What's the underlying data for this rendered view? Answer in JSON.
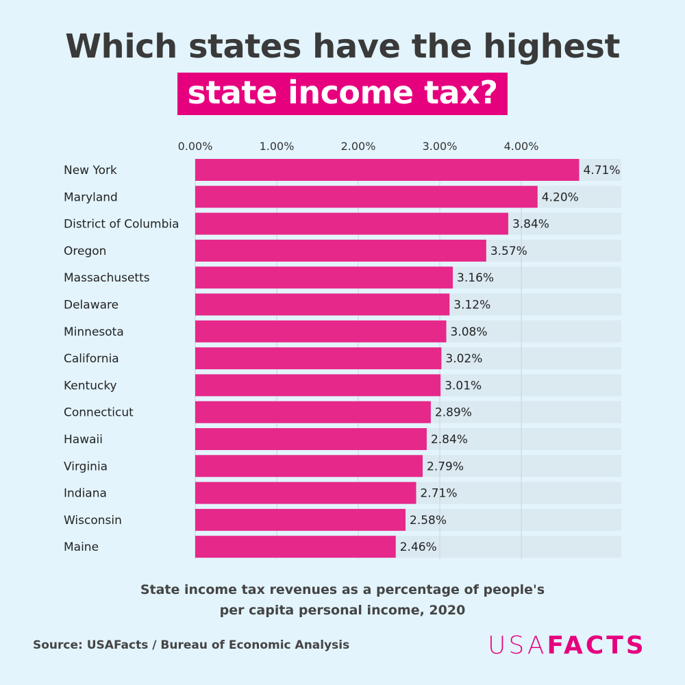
{
  "title_line1": "Which states have the highest",
  "title_line2": "state income tax?",
  "caption_line1": "State income tax revenues as a percentage of people's",
  "caption_line2": "per capita personal income, 2020",
  "source": "Source: USAFacts / Bureau of Economic Analysis",
  "logo": {
    "part1": "USA",
    "part2": "FACTS"
  },
  "colors": {
    "bar": "#e6288a",
    "track": "#dbe9f1",
    "background": "#e3f4fc",
    "accent": "#e6007e"
  },
  "chart_data": {
    "type": "bar",
    "orientation": "horizontal",
    "categories": [
      "New York",
      "Maryland",
      "District of Columbia",
      "Oregon",
      "Massachusetts",
      "Delaware",
      "Minnesota",
      "California",
      "Kentucky",
      "Connecticut",
      "Hawaii",
      "Virginia",
      "Indiana",
      "Wisconsin",
      "Maine"
    ],
    "values": [
      4.71,
      4.2,
      3.84,
      3.57,
      3.16,
      3.12,
      3.08,
      3.02,
      3.01,
      2.89,
      2.84,
      2.79,
      2.71,
      2.58,
      2.46
    ],
    "data_labels": [
      "4.71%",
      "4.20%",
      "3.84%",
      "3.57%",
      "3.16%",
      "3.12%",
      "3.08%",
      "3.02%",
      "3.01%",
      "2.89%",
      "2.84%",
      "2.79%",
      "2.71%",
      "2.58%",
      "2.46%"
    ],
    "x_ticks": [
      0,
      1,
      2,
      3,
      4
    ],
    "x_tick_labels": [
      "0.00%",
      "1.00%",
      "2.00%",
      "3.00%",
      "4.00%"
    ],
    "xaxis_position": "top",
    "grid": true
  }
}
